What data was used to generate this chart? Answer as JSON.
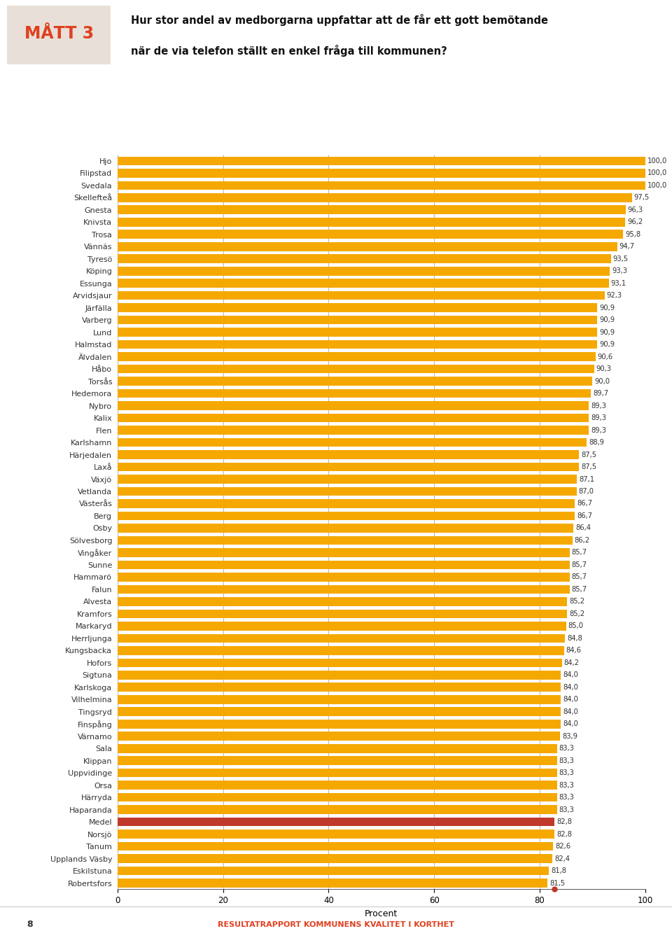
{
  "categories": [
    "Hjo",
    "Filipstad",
    "Svedala",
    "Skellefteå",
    "Gnesta",
    "Knivsta",
    "Trosa",
    "Vännäs",
    "Tyresö",
    "Köping",
    "Essunga",
    "Arvidsjaur",
    "Järfälla",
    "Varberg",
    "Lund",
    "Halmstad",
    "Älvdalen",
    "Håbo",
    "Torsås",
    "Hedemora",
    "Nybro",
    "Kalix",
    "Flen",
    "Karlshamn",
    "Härjedalen",
    "Laxå",
    "Växjö",
    "Vetlanda",
    "Västerås",
    "Berg",
    "Osby",
    "Sölvesborg",
    "Vingåker",
    "Sunne",
    "Hammarö",
    "Falun",
    "Alvesta",
    "Kramfors",
    "Markaryd",
    "Herrljunga",
    "Kungsbacka",
    "Hofors",
    "Sigtuna",
    "Karlskoga",
    "Vilhelmina",
    "Tingsryd",
    "Finspång",
    "Värnamo",
    "Sala",
    "Klippan",
    "Uppvidinge",
    "Orsa",
    "Härryda",
    "Haparanda",
    "Medel",
    "Norsjö",
    "Tanum",
    "Upplands Väsby",
    "Eskilstuna",
    "Robertsfors"
  ],
  "values": [
    100.0,
    100.0,
    100.0,
    97.5,
    96.3,
    96.2,
    95.8,
    94.7,
    93.5,
    93.3,
    93.1,
    92.3,
    90.9,
    90.9,
    90.9,
    90.9,
    90.6,
    90.3,
    90.0,
    89.7,
    89.3,
    89.3,
    89.3,
    88.9,
    87.5,
    87.5,
    87.1,
    87.0,
    86.7,
    86.7,
    86.4,
    86.2,
    85.7,
    85.7,
    85.7,
    85.7,
    85.2,
    85.2,
    85.0,
    84.8,
    84.6,
    84.2,
    84.0,
    84.0,
    84.0,
    84.0,
    84.0,
    83.9,
    83.3,
    83.3,
    83.3,
    83.3,
    83.3,
    83.3,
    82.8,
    82.8,
    82.6,
    82.4,
    81.8,
    81.5
  ],
  "bar_color": "#F5A800",
  "medel_color": "#C0392B",
  "medel_label": "Medel",
  "title_tag": "MÅTT 3",
  "title_tag_color": "#E04020",
  "title_tag_bg": "#E8E0D8",
  "question_line1": "Hur stor andel av medborgarna uppfattar att de får ett gott bemötande",
  "question_line2": "när de via telefon ställt en enkel fråga till kommunen?",
  "xlabel": "Procent",
  "xlim": [
    0,
    100
  ],
  "xticks": [
    0,
    20,
    40,
    60,
    80,
    100
  ],
  "grid_color": "#999999",
  "bar_height": 0.72,
  "bg_color": "#FFFFFF",
  "text_color": "#333333",
  "footer_text": "RESULTATRAPPORT KOMMUNENS KVALITET I KORTHET",
  "footer_page": "8",
  "reference_dot_color": "#C0392B",
  "reference_line_color": "#C0392B",
  "reference_value": 82.8
}
